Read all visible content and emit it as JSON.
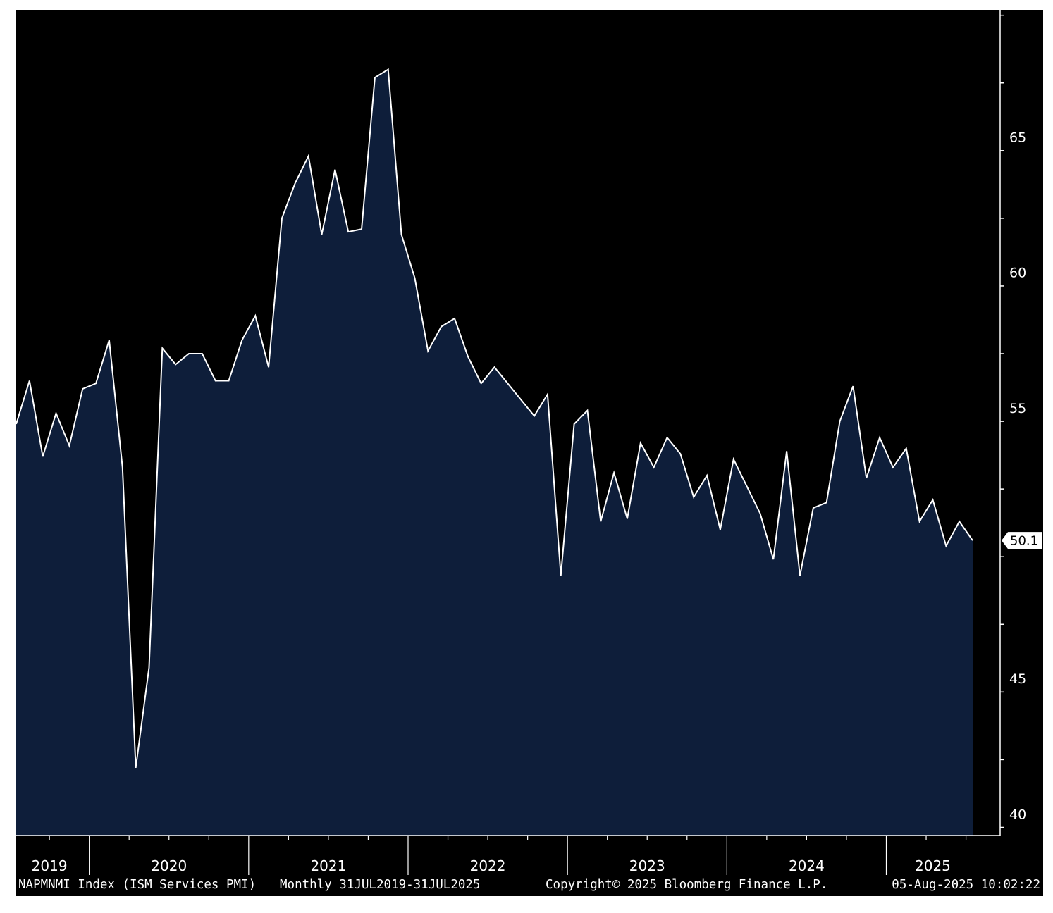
{
  "chart_data": {
    "type": "area",
    "x_start": "2019-07",
    "x_end": "2025-07",
    "frequency": "Monthly",
    "x": [
      "2019-07",
      "2019-08",
      "2019-09",
      "2019-10",
      "2019-11",
      "2019-12",
      "2020-01",
      "2020-02",
      "2020-03",
      "2020-04",
      "2020-05",
      "2020-06",
      "2020-07",
      "2020-08",
      "2020-09",
      "2020-10",
      "2020-11",
      "2020-12",
      "2021-01",
      "2021-02",
      "2021-03",
      "2021-04",
      "2021-05",
      "2021-06",
      "2021-07",
      "2021-08",
      "2021-09",
      "2021-10",
      "2021-11",
      "2021-12",
      "2022-01",
      "2022-02",
      "2022-03",
      "2022-04",
      "2022-05",
      "2022-06",
      "2022-07",
      "2022-08",
      "2022-09",
      "2022-10",
      "2022-11",
      "2022-12",
      "2023-01",
      "2023-02",
      "2023-03",
      "2023-04",
      "2023-05",
      "2023-06",
      "2023-07",
      "2023-08",
      "2023-09",
      "2023-10",
      "2023-11",
      "2023-12",
      "2024-01",
      "2024-02",
      "2024-03",
      "2024-04",
      "2024-05",
      "2024-06",
      "2024-07",
      "2024-08",
      "2024-09",
      "2024-10",
      "2024-11",
      "2024-12",
      "2025-01",
      "2025-02",
      "2025-03",
      "2025-04",
      "2025-05",
      "2025-06",
      "2025-07"
    ],
    "values": [
      54.4,
      56.0,
      53.2,
      54.8,
      53.6,
      55.7,
      55.9,
      57.5,
      52.8,
      41.7,
      45.4,
      57.2,
      56.6,
      57.0,
      57.0,
      56.0,
      56.0,
      57.5,
      58.4,
      56.5,
      62.0,
      63.3,
      64.3,
      61.4,
      63.8,
      61.5,
      61.6,
      67.2,
      67.5,
      61.4,
      59.8,
      57.1,
      58.0,
      58.3,
      56.9,
      55.9,
      56.5,
      55.9,
      55.3,
      54.7,
      55.5,
      48.8,
      54.4,
      54.9,
      50.8,
      52.6,
      50.9,
      53.7,
      52.8,
      53.9,
      53.3,
      51.7,
      52.5,
      50.5,
      53.1,
      52.1,
      51.1,
      49.4,
      53.4,
      48.8,
      51.3,
      51.5,
      54.5,
      55.8,
      52.4,
      53.9,
      52.8,
      53.5,
      50.8,
      51.6,
      49.9,
      50.8,
      50.1
    ],
    "ylim": [
      39.2,
      69.7
    ],
    "yticks": [
      40,
      45,
      50,
      55,
      60,
      65
    ],
    "ytick_labels": [
      "40",
      "45",
      "",
      "55",
      "60",
      "65"
    ],
    "year_labels": [
      "2019",
      "2020",
      "2021",
      "2022",
      "2023",
      "2024",
      "2025"
    ],
    "last_value_label": "50.1",
    "colors": {
      "background": "#000000",
      "line": "#ffffff",
      "fill": "#0e1e3a"
    }
  },
  "footer": {
    "ticker": "NAPMNMI Index (ISM Services PMI)",
    "range": "Monthly 31JUL2019-31JUL2025",
    "copyright": "Copyright© 2025 Bloomberg Finance L.P.",
    "timestamp": "05-Aug-2025 10:02:22"
  }
}
